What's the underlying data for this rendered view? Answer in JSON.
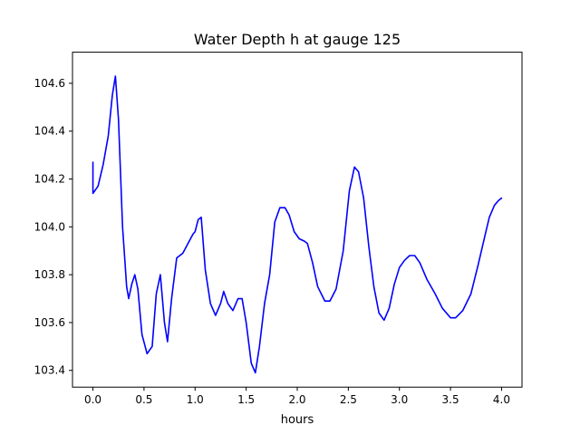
{
  "chart_data": {
    "type": "line",
    "title": "Water Depth h at gauge 125",
    "xlabel": "hours",
    "ylabel": "",
    "xlim": [
      -0.2,
      4.2
    ],
    "ylim": [
      103.33,
      104.73
    ],
    "xticks": [
      0.0,
      0.5,
      1.0,
      1.5,
      2.0,
      2.5,
      3.0,
      3.5,
      4.0
    ],
    "xtick_labels": [
      "0.0",
      "0.5",
      "1.0",
      "1.5",
      "2.0",
      "2.5",
      "3.0",
      "3.5",
      "4.0"
    ],
    "yticks": [
      103.4,
      103.6,
      103.8,
      104.0,
      104.2,
      104.4,
      104.6
    ],
    "ytick_labels": [
      "103.4",
      "103.6",
      "103.8",
      "104.0",
      "104.2",
      "104.4",
      "104.6"
    ],
    "grid": false,
    "series": [
      {
        "color": "#0000ff",
        "points": [
          [
            0.0,
            104.27
          ],
          [
            0.0,
            104.14
          ],
          [
            0.05,
            104.17
          ],
          [
            0.1,
            104.26
          ],
          [
            0.15,
            104.38
          ],
          [
            0.19,
            104.55
          ],
          [
            0.22,
            104.63
          ],
          [
            0.25,
            104.45
          ],
          [
            0.29,
            104.0
          ],
          [
            0.33,
            103.75
          ],
          [
            0.35,
            103.7
          ],
          [
            0.38,
            103.76
          ],
          [
            0.41,
            103.8
          ],
          [
            0.44,
            103.74
          ],
          [
            0.48,
            103.55
          ],
          [
            0.53,
            103.47
          ],
          [
            0.58,
            103.5
          ],
          [
            0.62,
            103.72
          ],
          [
            0.66,
            103.8
          ],
          [
            0.7,
            103.6
          ],
          [
            0.73,
            103.52
          ],
          [
            0.77,
            103.7
          ],
          [
            0.82,
            103.87
          ],
          [
            0.88,
            103.89
          ],
          [
            0.93,
            103.93
          ],
          [
            0.98,
            103.97
          ],
          [
            1.0,
            103.98
          ],
          [
            1.03,
            104.03
          ],
          [
            1.06,
            104.04
          ],
          [
            1.1,
            103.82
          ],
          [
            1.15,
            103.68
          ],
          [
            1.2,
            103.63
          ],
          [
            1.25,
            103.68
          ],
          [
            1.28,
            103.73
          ],
          [
            1.32,
            103.68
          ],
          [
            1.37,
            103.65
          ],
          [
            1.42,
            103.7
          ],
          [
            1.46,
            103.7
          ],
          [
            1.5,
            103.6
          ],
          [
            1.55,
            103.43
          ],
          [
            1.59,
            103.39
          ],
          [
            1.63,
            103.5
          ],
          [
            1.68,
            103.68
          ],
          [
            1.73,
            103.8
          ],
          [
            1.78,
            104.02
          ],
          [
            1.83,
            104.08
          ],
          [
            1.88,
            104.08
          ],
          [
            1.92,
            104.05
          ],
          [
            1.97,
            103.98
          ],
          [
            2.02,
            103.95
          ],
          [
            2.07,
            103.94
          ],
          [
            2.1,
            103.93
          ],
          [
            2.15,
            103.85
          ],
          [
            2.2,
            103.75
          ],
          [
            2.27,
            103.69
          ],
          [
            2.32,
            103.69
          ],
          [
            2.38,
            103.74
          ],
          [
            2.45,
            103.9
          ],
          [
            2.51,
            104.15
          ],
          [
            2.56,
            104.25
          ],
          [
            2.6,
            104.23
          ],
          [
            2.65,
            104.12
          ],
          [
            2.7,
            103.92
          ],
          [
            2.75,
            103.75
          ],
          [
            2.8,
            103.64
          ],
          [
            2.85,
            103.61
          ],
          [
            2.9,
            103.66
          ],
          [
            2.95,
            103.76
          ],
          [
            3.0,
            103.83
          ],
          [
            3.05,
            103.86
          ],
          [
            3.1,
            103.88
          ],
          [
            3.15,
            103.88
          ],
          [
            3.2,
            103.85
          ],
          [
            3.27,
            103.78
          ],
          [
            3.35,
            103.72
          ],
          [
            3.42,
            103.66
          ],
          [
            3.5,
            103.62
          ],
          [
            3.55,
            103.62
          ],
          [
            3.62,
            103.65
          ],
          [
            3.7,
            103.72
          ],
          [
            3.77,
            103.84
          ],
          [
            3.83,
            103.95
          ],
          [
            3.88,
            104.04
          ],
          [
            3.93,
            104.09
          ],
          [
            3.97,
            104.11
          ],
          [
            4.0,
            104.12
          ]
        ]
      }
    ]
  }
}
